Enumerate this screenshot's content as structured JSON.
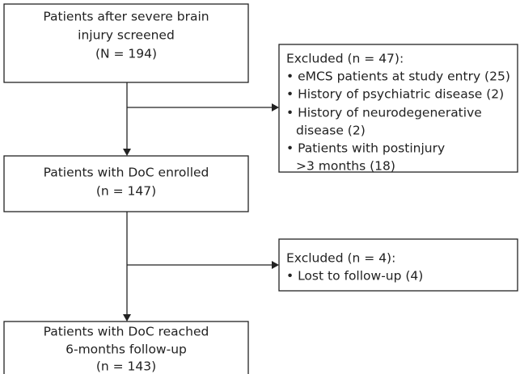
{
  "nodes": [
    {
      "lines": [
        "Patients after severe brain",
        "injury screened",
        "(N = 194)"
      ]
    },
    {
      "lines": [
        "Excluded (n = 47):",
        "• eMCS patients at study entry (25)",
        "• History of psychiatric disease (2)",
        "• History of neurodegenerative",
        "disease (2)",
        "• Patients with postinjury",
        ">3 months (18)"
      ]
    },
    {
      "lines": [
        "Patients with DoC enrolled",
        "(n = 147)"
      ]
    },
    {
      "lines": [
        "Excluded (n = 4):",
        "• Lost to follow-up (4)"
      ]
    },
    {
      "lines": [
        "Patients with DoC reached",
        "6-months follow-up",
        "(n = 143)"
      ]
    }
  ]
}
